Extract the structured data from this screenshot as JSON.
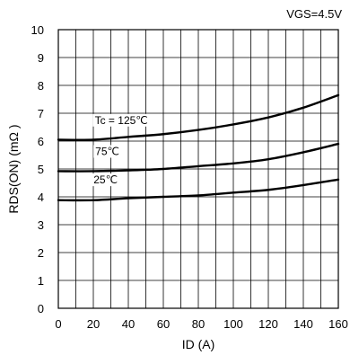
{
  "chart_data": {
    "type": "line",
    "condition": "VGS=4.5V",
    "xlabel": "ID (A)",
    "ylabel": "RDS(ON) (mΩ )",
    "xlim": [
      0,
      160
    ],
    "ylim": [
      0,
      10
    ],
    "x_ticks": [
      "0",
      "20",
      "40",
      "60",
      "80",
      "100",
      "120",
      "140",
      "160"
    ],
    "y_ticks": [
      "0",
      "1",
      "2",
      "3",
      "4",
      "5",
      "6",
      "7",
      "8",
      "9",
      "10"
    ],
    "grid": true,
    "x": [
      0,
      20,
      40,
      60,
      80,
      100,
      120,
      140,
      160
    ],
    "series": [
      {
        "name": "Tc = 125℃",
        "values": [
          6.05,
          6.05,
          6.15,
          6.25,
          6.4,
          6.6,
          6.85,
          7.2,
          7.65
        ]
      },
      {
        "name": "75℃",
        "values": [
          4.92,
          4.92,
          4.95,
          5.0,
          5.1,
          5.2,
          5.35,
          5.6,
          5.9
        ]
      },
      {
        "name": "25℃",
        "values": [
          3.88,
          3.88,
          3.95,
          4.0,
          4.05,
          4.15,
          4.25,
          4.42,
          4.62
        ]
      }
    ]
  }
}
